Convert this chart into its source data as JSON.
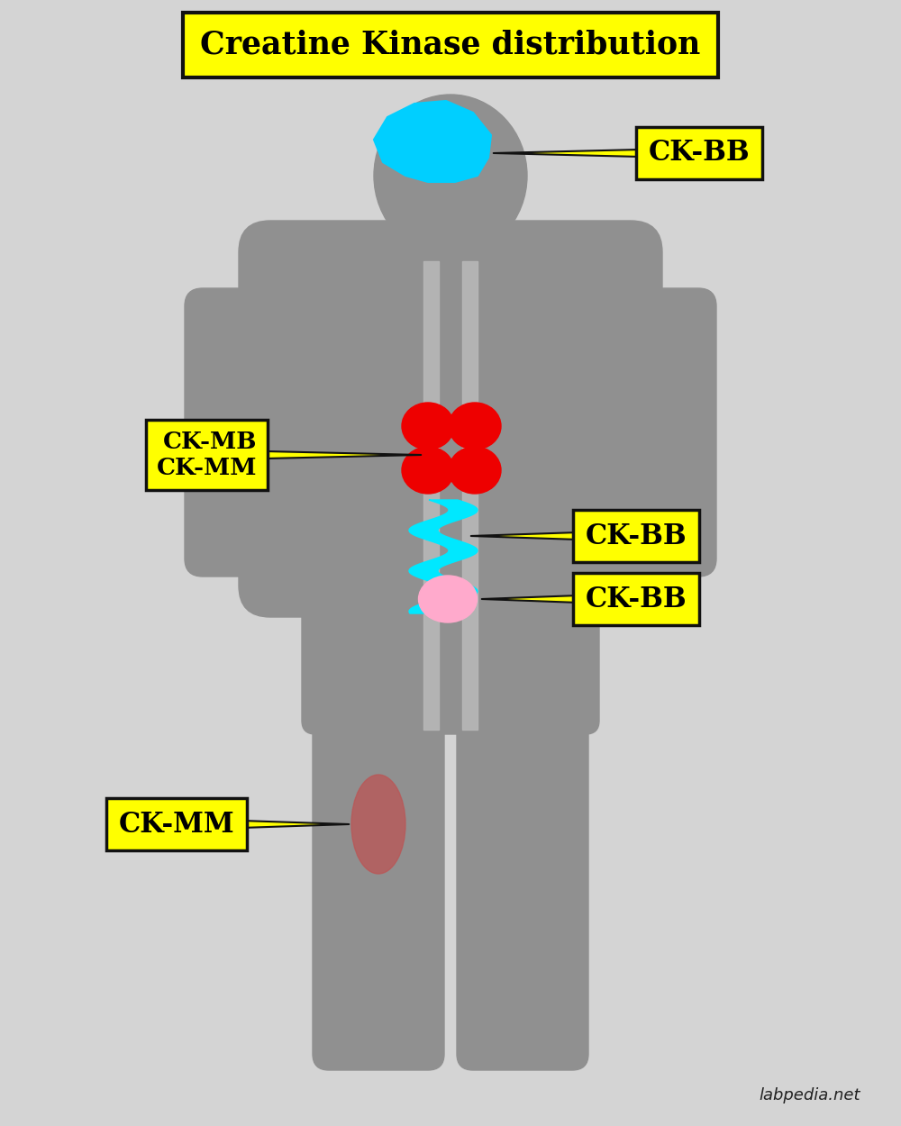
{
  "title": "Creatine Kinase distribution",
  "bg_color": "#d4d4d4",
  "body_color": "#909090",
  "body_lighter": "#a8a8a8",
  "yellow_color": "#ffff00",
  "yellow_edge": "#111111",
  "brain_color": "#00cfff",
  "heart_color": "#ee0000",
  "gut_color": "#00e8ff",
  "uterus_color": "#ffaacc",
  "muscle_color": "#bb5555",
  "label_brain": "CK-BB",
  "label_heart": "CK-MB\nCK-MM",
  "label_gut": "CK-BB",
  "label_uterus": "CK-BB",
  "label_muscle": "CK-MM",
  "watermark": "labpedia.net",
  "fig_width": 10.0,
  "fig_height": 12.5
}
